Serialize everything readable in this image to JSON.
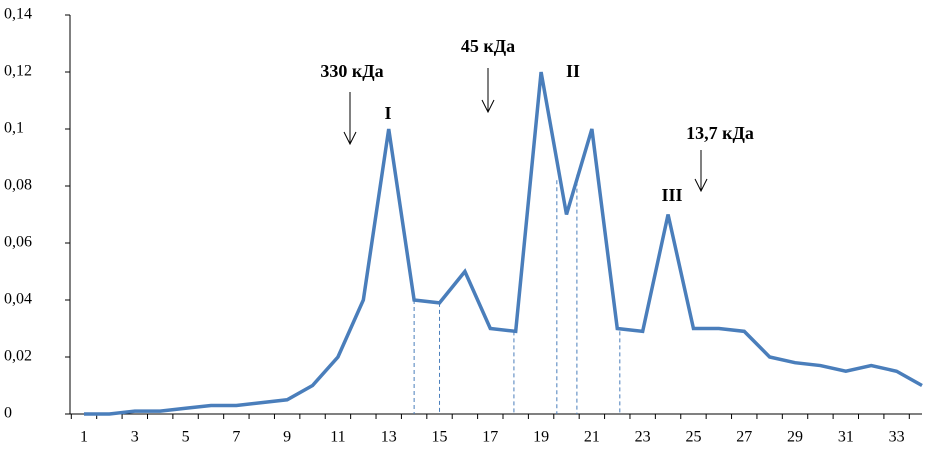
{
  "chart_data": {
    "type": "line",
    "categories": [
      "1",
      null,
      "3",
      null,
      "5",
      null,
      "7",
      null,
      "9",
      null,
      "11",
      null,
      "13",
      null,
      "15",
      null,
      "17",
      null,
      "19",
      null,
      "21",
      null,
      "23",
      null,
      "25",
      null,
      "27",
      null,
      "29",
      null,
      "31",
      null,
      "33",
      null
    ],
    "series": [
      {
        "color": "#4a7ebb",
        "values": [
          0,
          0,
          0.001,
          0.001,
          0.002,
          0.003,
          0.003,
          0.004,
          0.005,
          0.01,
          0.02,
          0.04,
          0.1,
          0.04,
          0.039,
          0.05,
          0.03,
          0.029,
          0.12,
          0.07,
          0.1,
          0.03,
          0.029,
          0.07,
          0.03,
          0.03,
          0.029,
          0.02,
          0.018,
          0.017,
          0.015,
          0.017,
          0.015,
          0.01
        ]
      }
    ],
    "ylim": [
      0,
      0.14
    ],
    "yticks": [
      0,
      {
        "value": 0.02,
        "label": "0,02"
      },
      {
        "value": 0.04,
        "label": "0,04"
      },
      {
        "value": 0.06,
        "label": "0,06"
      },
      {
        "value": 0.08,
        "label": "0,08"
      },
      {
        "value": 0.1,
        "label": "0,1"
      },
      {
        "value": 0.12,
        "label": "0,12"
      },
      {
        "value": 0.14,
        "label": "0,14"
      }
    ],
    "dashed_lines": [
      {
        "x": 14,
        "y": 0.04
      },
      {
        "x": 15,
        "y": 0.039
      },
      {
        "x": 17.93,
        "y": 0.029
      },
      {
        "x": 19.62,
        "y": 0.082
      },
      {
        "x": 20.41,
        "y": 0.084
      },
      {
        "x": 22.1,
        "y": 0.029
      }
    ],
    "annotations": [
      "330 кДа",
      "45 кДа",
      "13,7 кДа",
      "I",
      "II",
      "III"
    ]
  }
}
